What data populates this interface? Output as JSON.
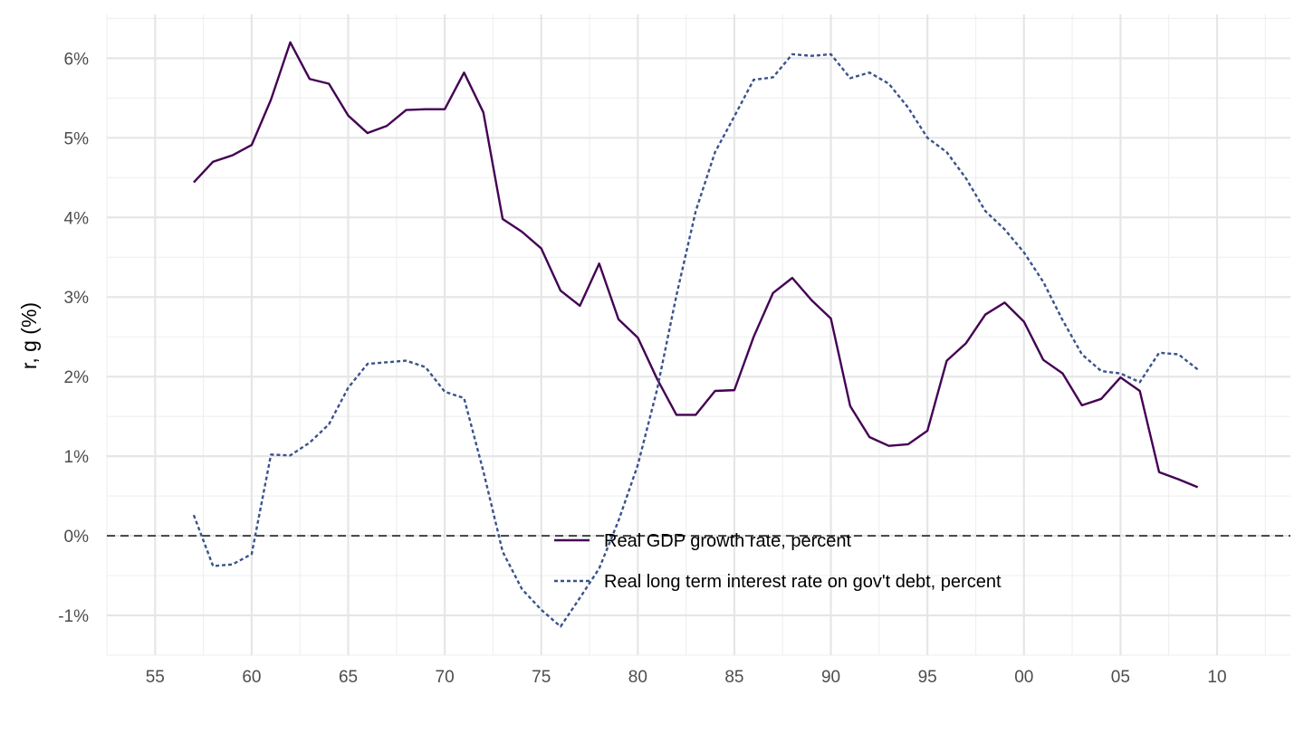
{
  "chart_data": {
    "type": "line",
    "xlabel": "",
    "ylabel": "r, g (%)",
    "xlim": [
      1952.5,
      2013.8
    ],
    "ylim": [
      -1.5,
      6.55
    ],
    "x_ticks": [
      1955,
      1960,
      1965,
      1970,
      1975,
      1980,
      1985,
      1990,
      1995,
      2000,
      2005,
      2010
    ],
    "x_tick_labels": [
      "55",
      "60",
      "65",
      "70",
      "75",
      "80",
      "85",
      "90",
      "95",
      "00",
      "05",
      "10"
    ],
    "y_ticks": [
      -1,
      0,
      1,
      2,
      3,
      4,
      5,
      6
    ],
    "y_tick_labels": [
      "-1%",
      "0%",
      "1%",
      "2%",
      "3%",
      "4%",
      "5%",
      "6%"
    ],
    "grid": true,
    "reference_line": {
      "y": 0,
      "style": "dashed"
    },
    "legend": "bottom-center",
    "x": [
      1957,
      1958,
      1959,
      1960,
      1961,
      1962,
      1963,
      1964,
      1965,
      1966,
      1967,
      1968,
      1969,
      1970,
      1971,
      1972,
      1973,
      1974,
      1975,
      1976,
      1977,
      1978,
      1979,
      1980,
      1981,
      1982,
      1983,
      1984,
      1985,
      1986,
      1987,
      1988,
      1989,
      1990,
      1991,
      1992,
      1993,
      1994,
      1995,
      1996,
      1997,
      1998,
      1999,
      2000,
      2001,
      2002,
      2003,
      2004,
      2005,
      2006,
      2007,
      2008,
      2009
    ],
    "series": [
      {
        "name": "Real GDP growth rate, percent",
        "color": "#440154",
        "dash": "solid",
        "values": [
          4.44,
          4.7,
          4.78,
          4.91,
          5.48,
          6.2,
          5.74,
          5.68,
          5.28,
          5.06,
          5.15,
          5.35,
          5.36,
          5.36,
          5.82,
          5.32,
          3.98,
          3.82,
          3.61,
          3.08,
          2.89,
          3.42,
          2.72,
          2.49,
          1.97,
          1.52,
          1.52,
          1.82,
          1.83,
          2.5,
          3.05,
          3.24,
          2.96,
          2.73,
          1.63,
          1.24,
          1.13,
          1.15,
          1.32,
          2.2,
          2.42,
          2.78,
          2.93,
          2.69,
          2.21,
          2.04,
          1.64,
          1.72,
          1.99,
          1.82,
          0.8,
          0.71,
          0.61
        ]
      },
      {
        "name": "Real long term interest rate on gov't debt, percent",
        "color": "#3b528b",
        "dash": "dotted",
        "values": [
          0.26,
          -0.38,
          -0.36,
          -0.23,
          1.02,
          1.01,
          1.17,
          1.4,
          1.86,
          2.16,
          2.18,
          2.2,
          2.12,
          1.81,
          1.73,
          0.81,
          -0.2,
          -0.67,
          -0.93,
          -1.14,
          -0.78,
          -0.41,
          0.19,
          0.89,
          1.84,
          3.02,
          4.08,
          4.82,
          5.27,
          5.73,
          5.76,
          6.05,
          6.03,
          6.05,
          5.75,
          5.82,
          5.68,
          5.38,
          5.0,
          4.82,
          4.49,
          4.08,
          3.85,
          3.56,
          3.19,
          2.71,
          2.28,
          2.07,
          2.04,
          1.93,
          2.3,
          2.28,
          2.09
        ]
      }
    ]
  }
}
